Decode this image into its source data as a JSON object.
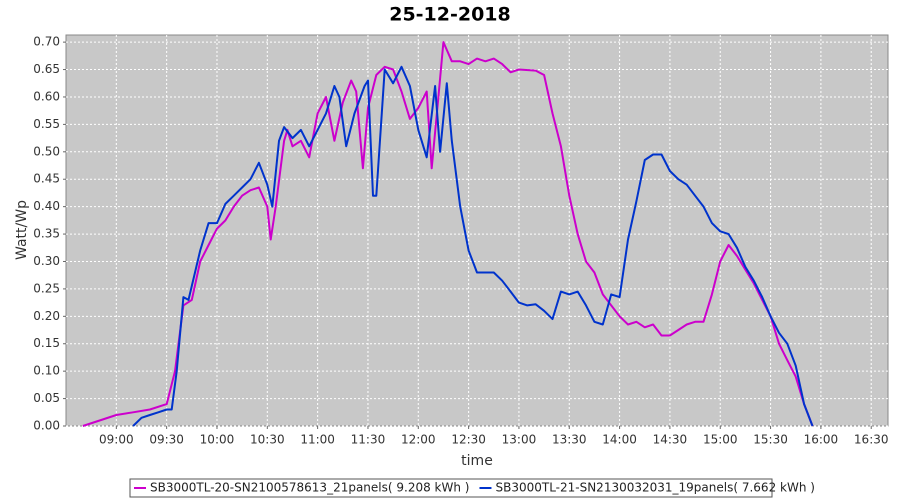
{
  "chart_data": {
    "type": "line",
    "title": "25-12-2018",
    "x_label": "time",
    "y_label": "Watt/Wp",
    "xlim": [
      510,
      1000
    ],
    "ylim": [
      0,
      0.713
    ],
    "grid": true,
    "legend": "bottom",
    "xticks": [
      {
        "value": 540,
        "label": "09:00"
      },
      {
        "value": 570,
        "label": "09:30"
      },
      {
        "value": 600,
        "label": "10:00"
      },
      {
        "value": 630,
        "label": "10:30"
      },
      {
        "value": 660,
        "label": "11:00"
      },
      {
        "value": 690,
        "label": "11:30"
      },
      {
        "value": 720,
        "label": "12:00"
      },
      {
        "value": 750,
        "label": "12:30"
      },
      {
        "value": 780,
        "label": "13:00"
      },
      {
        "value": 810,
        "label": "13:30"
      },
      {
        "value": 840,
        "label": "14:00"
      },
      {
        "value": 870,
        "label": "14:30"
      },
      {
        "value": 900,
        "label": "15:00"
      },
      {
        "value": 930,
        "label": "15:30"
      },
      {
        "value": 960,
        "label": "16:00"
      },
      {
        "value": 990,
        "label": "16:30"
      }
    ],
    "yticks": [
      {
        "value": 0,
        "label": "0.00"
      },
      {
        "value": 0.05,
        "label": "0.05"
      },
      {
        "value": 0.1,
        "label": "0.10"
      },
      {
        "value": 0.15,
        "label": "0.15"
      },
      {
        "value": 0.2,
        "label": "0.20"
      },
      {
        "value": 0.25,
        "label": "0.25"
      },
      {
        "value": 0.3,
        "label": "0.30"
      },
      {
        "value": 0.35,
        "label": "0.35"
      },
      {
        "value": 0.4,
        "label": "0.40"
      },
      {
        "value": 0.45,
        "label": "0.45"
      },
      {
        "value": 0.5,
        "label": "0.50"
      },
      {
        "value": 0.55,
        "label": "0.55"
      },
      {
        "value": 0.6,
        "label": "0.60"
      },
      {
        "value": 0.65,
        "label": "0.65"
      },
      {
        "value": 0.7,
        "label": "0.70"
      }
    ],
    "series": [
      {
        "name": "SB3000TL-20-SN2100578613_21panels( 9.208 kWh )",
        "color": "#cc00cc",
        "x": [
          520,
          530,
          540,
          550,
          560,
          570,
          575,
          580,
          585,
          590,
          595,
          600,
          605,
          610,
          615,
          620,
          625,
          630,
          632,
          635,
          640,
          642,
          645,
          650,
          655,
          660,
          665,
          670,
          675,
          680,
          683,
          687,
          690,
          695,
          700,
          705,
          710,
          715,
          720,
          725,
          728,
          732,
          735,
          740,
          745,
          750,
          755,
          760,
          765,
          770,
          775,
          780,
          790,
          795,
          800,
          805,
          810,
          815,
          820,
          825,
          830,
          835,
          840,
          845,
          850,
          855,
          860,
          865,
          870,
          875,
          880,
          885,
          890,
          895,
          900,
          905,
          910,
          915,
          920,
          925,
          930,
          935,
          940,
          945,
          950,
          955
        ],
        "values": [
          0,
          0.01,
          0.02,
          0.025,
          0.03,
          0.04,
          0.1,
          0.22,
          0.23,
          0.3,
          0.33,
          0.36,
          0.375,
          0.4,
          0.42,
          0.43,
          0.435,
          0.4,
          0.34,
          0.4,
          0.52,
          0.54,
          0.51,
          0.52,
          0.49,
          0.57,
          0.6,
          0.52,
          0.59,
          0.63,
          0.61,
          0.47,
          0.58,
          0.64,
          0.655,
          0.65,
          0.61,
          0.56,
          0.58,
          0.61,
          0.47,
          0.6,
          0.7,
          0.665,
          0.665,
          0.66,
          0.67,
          0.665,
          0.67,
          0.66,
          0.645,
          0.65,
          0.648,
          0.64,
          0.57,
          0.51,
          0.42,
          0.35,
          0.3,
          0.28,
          0.24,
          0.22,
          0.2,
          0.185,
          0.19,
          0.18,
          0.185,
          0.165,
          0.165,
          0.175,
          0.185,
          0.19,
          0.19,
          0.24,
          0.3,
          0.33,
          0.31,
          0.285,
          0.26,
          0.23,
          0.2,
          0.15,
          0.12,
          0.09,
          0.04,
          0
        ]
      },
      {
        "name": "SB3000TL-21-SN2130032031_19panels( 7.662 kWh )",
        "color": "#0033cc",
        "x": [
          550,
          555,
          560,
          565,
          570,
          573,
          576,
          580,
          583,
          590,
          595,
          600,
          605,
          610,
          615,
          620,
          625,
          630,
          633,
          637,
          640,
          645,
          650,
          655,
          660,
          665,
          670,
          673,
          677,
          682,
          688,
          690,
          693,
          695,
          700,
          705,
          710,
          715,
          720,
          725,
          730,
          733,
          737,
          740,
          745,
          750,
          755,
          760,
          765,
          770,
          775,
          780,
          785,
          790,
          795,
          800,
          805,
          810,
          815,
          820,
          825,
          830,
          835,
          840,
          845,
          850,
          855,
          860,
          865,
          870,
          875,
          880,
          885,
          890,
          895,
          900,
          905,
          910,
          915,
          920,
          925,
          930,
          935,
          940,
          945,
          950,
          955
        ],
        "values": [
          0,
          0.015,
          0.02,
          0.025,
          0.03,
          0.03,
          0.1,
          0.235,
          0.23,
          0.32,
          0.37,
          0.37,
          0.405,
          0.42,
          0.435,
          0.45,
          0.48,
          0.44,
          0.4,
          0.52,
          0.545,
          0.525,
          0.54,
          0.51,
          0.54,
          0.57,
          0.62,
          0.6,
          0.51,
          0.57,
          0.62,
          0.63,
          0.42,
          0.42,
          0.65,
          0.625,
          0.655,
          0.62,
          0.54,
          0.49,
          0.62,
          0.5,
          0.625,
          0.52,
          0.4,
          0.32,
          0.28,
          0.28,
          0.28,
          0.265,
          0.245,
          0.225,
          0.22,
          0.222,
          0.21,
          0.195,
          0.245,
          0.24,
          0.245,
          0.22,
          0.19,
          0.185,
          0.24,
          0.235,
          0.34,
          0.41,
          0.485,
          0.495,
          0.495,
          0.465,
          0.45,
          0.44,
          0.42,
          0.4,
          0.37,
          0.355,
          0.35,
          0.325,
          0.29,
          0.265,
          0.235,
          0.2,
          0.17,
          0.15,
          0.11,
          0.04,
          0
        ]
      }
    ]
  }
}
